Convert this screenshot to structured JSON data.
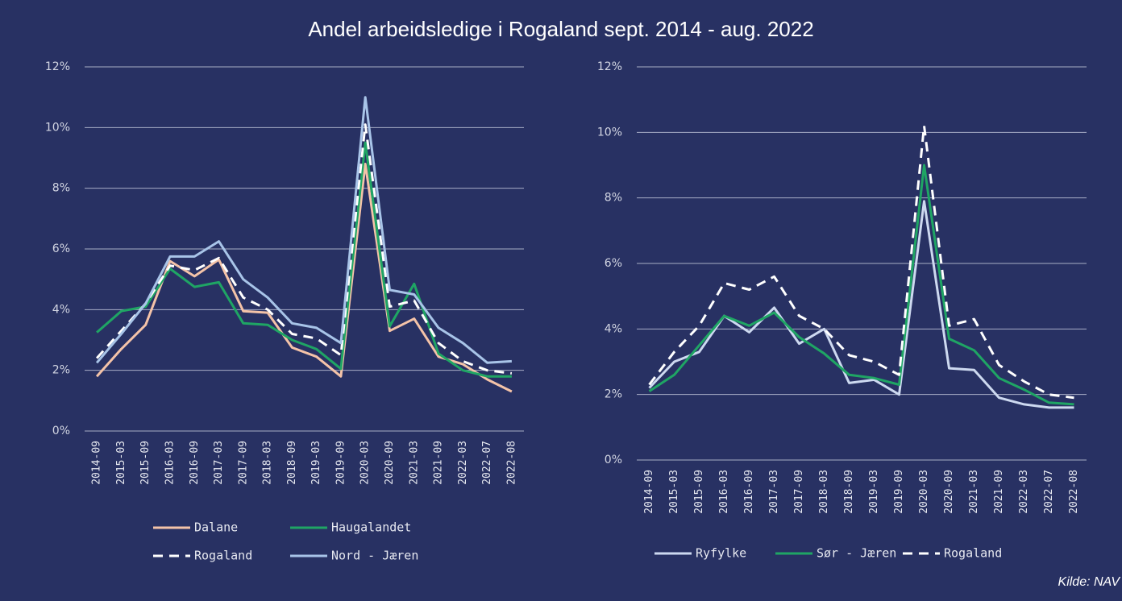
{
  "title": "Andel arbeidsledige i Rogaland sept. 2014 - aug. 2022",
  "source": "Kilde: NAV",
  "chart_data": [
    {
      "type": "line",
      "categories": [
        "2014-09",
        "2015-03",
        "2015-09",
        "2016-03",
        "2016-09",
        "2017-03",
        "2017-09",
        "2018-03",
        "2018-09",
        "2019-03",
        "2019-09",
        "2020-03",
        "2020-09",
        "2021-03",
        "2021-09",
        "2022-03",
        "2022-07",
        "2022-08"
      ],
      "ylim": [
        0,
        12
      ],
      "yticks": [
        {
          "value": 0,
          "label": "0%"
        },
        {
          "value": 2,
          "label": "2%"
        },
        {
          "value": 4,
          "label": "4%"
        },
        {
          "value": 6,
          "label": "6%"
        },
        {
          "value": 8,
          "label": "8%"
        },
        {
          "value": 10,
          "label": "10%"
        },
        {
          "value": 12,
          "label": "12%"
        }
      ],
      "grid": true,
      "series": [
        {
          "name": "Dalane",
          "color": "#f4c3a8",
          "dash": false,
          "values": [
            1.8,
            2.7,
            3.5,
            5.6,
            5.1,
            5.65,
            3.95,
            3.9,
            2.75,
            2.45,
            1.8,
            8.8,
            3.3,
            3.7,
            2.45,
            2.2,
            1.7,
            1.3
          ]
        },
        {
          "name": "Haugalandet",
          "color": "#1fa564",
          "dash": false,
          "values": [
            3.25,
            3.95,
            4.1,
            5.35,
            4.75,
            4.9,
            3.55,
            3.5,
            3.0,
            2.7,
            2.05,
            9.5,
            3.45,
            4.85,
            2.55,
            2.0,
            1.8,
            1.8
          ]
        },
        {
          "name": "Rogaland",
          "color": "#ffffff",
          "dash": true,
          "values": [
            2.4,
            3.3,
            4.2,
            5.45,
            5.3,
            5.7,
            4.4,
            4.0,
            3.2,
            3.05,
            2.5,
            10.1,
            4.1,
            4.3,
            2.9,
            2.3,
            2.0,
            1.9
          ]
        },
        {
          "name": "Nord - Jæren",
          "color": "#a8c4e8",
          "dash": false,
          "values": [
            2.25,
            3.2,
            4.2,
            5.75,
            5.75,
            6.25,
            5.0,
            4.4,
            3.55,
            3.4,
            2.9,
            11.0,
            4.65,
            4.5,
            3.4,
            2.9,
            2.25,
            2.3
          ]
        }
      ]
    },
    {
      "type": "line",
      "categories": [
        "2014-09",
        "2015-03",
        "2015-09",
        "2016-03",
        "2016-09",
        "2017-03",
        "2017-09",
        "2018-03",
        "2018-09",
        "2019-03",
        "2019-09",
        "2020-03",
        "2020-09",
        "2021-03",
        "2021-09",
        "2022-03",
        "2022-07",
        "2022-08"
      ],
      "ylim": [
        0,
        12
      ],
      "yticks": [
        {
          "value": 0,
          "label": "0%"
        },
        {
          "value": 2,
          "label": "2%"
        },
        {
          "value": 4,
          "label": "4%"
        },
        {
          "value": 6,
          "label": "6%"
        },
        {
          "value": 8,
          "label": "8%"
        },
        {
          "value": 10,
          "label": "10%"
        },
        {
          "value": 12,
          "label": "12%"
        }
      ],
      "grid": true,
      "series": [
        {
          "name": "Ryfylke",
          "color": "#cdd9f0",
          "dash": false,
          "values": [
            2.2,
            3.0,
            3.3,
            4.4,
            3.9,
            4.65,
            3.55,
            4.0,
            2.35,
            2.45,
            2.0,
            7.9,
            2.8,
            2.75,
            1.9,
            1.7,
            1.6,
            1.6
          ]
        },
        {
          "name": "Sør - Jæren",
          "color": "#1fa564",
          "dash": false,
          "values": [
            2.1,
            2.6,
            3.5,
            4.4,
            4.1,
            4.5,
            3.75,
            3.25,
            2.6,
            2.5,
            2.3,
            9.0,
            3.7,
            3.35,
            2.5,
            2.15,
            1.75,
            1.7
          ]
        },
        {
          "name": "Rogaland",
          "color": "#ffffff",
          "dash": true,
          "values": [
            2.3,
            3.3,
            4.1,
            5.4,
            5.2,
            5.6,
            4.4,
            4.0,
            3.2,
            3.0,
            2.6,
            10.2,
            4.1,
            4.3,
            2.9,
            2.4,
            2.0,
            1.9
          ]
        }
      ]
    }
  ]
}
